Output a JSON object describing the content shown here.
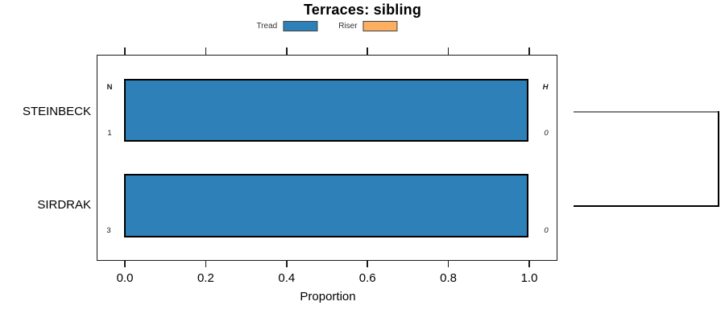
{
  "title": "Terraces: sibling",
  "legend": {
    "items": [
      {
        "label": "Tread",
        "color": "#2E80B9"
      },
      {
        "label": "Riser",
        "color": "#FCAE61"
      }
    ]
  },
  "axis": {
    "xlabel": "Proportion",
    "tick_labels": [
      "0.0",
      "0.2",
      "0.4",
      "0.6",
      "0.8",
      "1.0"
    ]
  },
  "column_headers": {
    "left": "N",
    "right": "H"
  },
  "rows": [
    {
      "label": "STEINBECK",
      "n": "1",
      "h": "0"
    },
    {
      "label": "SIRDRAK",
      "n": "3",
      "h": "0"
    }
  ],
  "colors": {
    "tread": "#2E80B9",
    "riser": "#FCAE61",
    "bracket_gray": "#808080",
    "bracket_black": "#000000"
  },
  "chart_data": {
    "type": "bar",
    "orientation": "horizontal",
    "title": "Terraces: sibling",
    "xlabel": "Proportion",
    "xlim": [
      0,
      1.05
    ],
    "xticks": [
      0.0,
      0.2,
      0.4,
      0.6,
      0.8,
      1.0
    ],
    "categories": [
      "STEINBECK",
      "SIRDRAK"
    ],
    "series": [
      {
        "name": "Tread",
        "color": "#2E80B9",
        "values": [
          1.0,
          1.0
        ]
      },
      {
        "name": "Riser",
        "color": "#FCAE61",
        "values": [
          0.0,
          0.0
        ]
      }
    ],
    "row_annotations": {
      "header_left": "N",
      "header_right": "H",
      "left_values": [
        "1",
        "3"
      ],
      "right_values": [
        "0",
        "0"
      ]
    },
    "legend_position": "top",
    "grid": false,
    "sibling_bracket": {
      "side": "right",
      "connects": [
        "STEINBECK",
        "SIRDRAK"
      ]
    }
  }
}
